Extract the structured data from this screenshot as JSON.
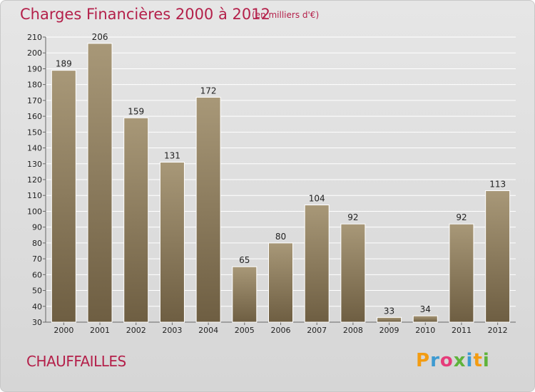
{
  "header": {
    "title": "Charges Financières 2000 à 2012",
    "unit_note": "(en milliers d'€)"
  },
  "commune": "CHAUFFAILLES",
  "logo": {
    "letters": [
      "P",
      "r",
      "o",
      "x",
      "i",
      "t",
      "i"
    ],
    "colors": [
      "#f39c12",
      "#3d9ad1",
      "#e63c7a",
      "#5fb33b",
      "#3d9ad1",
      "#f39c12",
      "#5fb33b"
    ]
  },
  "chart_data": {
    "type": "bar",
    "categories": [
      "2000",
      "2001",
      "2002",
      "2003",
      "2004",
      "2005",
      "2006",
      "2007",
      "2008",
      "2009",
      "2010",
      "2011",
      "2012"
    ],
    "values": [
      189,
      206,
      159,
      131,
      172,
      65,
      80,
      104,
      92,
      33,
      34,
      92,
      113
    ],
    "title": "Charges Financières 2000 à 2012",
    "xlabel": "",
    "ylabel": "",
    "ylim": [
      30,
      210
    ],
    "yticks": [
      30,
      40,
      50,
      60,
      70,
      80,
      90,
      100,
      110,
      120,
      130,
      140,
      150,
      160,
      170,
      180,
      190,
      200,
      210
    ],
    "grid": true,
    "bar_color_top": "#a89878",
    "bar_color_bottom": "#6e5e42"
  }
}
